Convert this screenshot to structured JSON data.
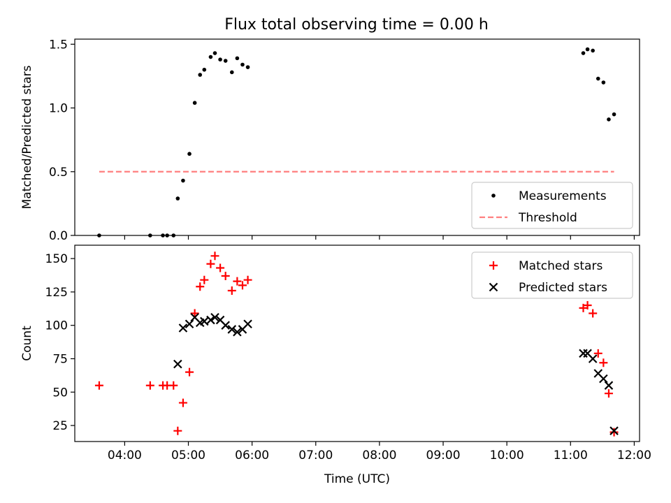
{
  "chart_data": [
    {
      "type": "scatter",
      "title": "Flux total observing time = 0.00 h",
      "xlabel": "",
      "ylabel": "Matched/Predicted stars",
      "xlim": [
        "03:13",
        "12:05"
      ],
      "ylim": [
        0,
        1.54
      ],
      "yticks": [
        0,
        0.5,
        1.0,
        1.5
      ],
      "ytick_labels": [
        "0.0",
        "0.5",
        "1.0",
        "1.5"
      ],
      "legend_position": "lower-right",
      "series": [
        {
          "name": "Measurements",
          "color": "#000000",
          "marker": "dot",
          "points": [
            [
              "03:36",
              0.0
            ],
            [
              "04:24",
              0.0
            ],
            [
              "04:36",
              0.0
            ],
            [
              "04:40",
              0.0
            ],
            [
              "04:46",
              0.0
            ],
            [
              "04:50",
              0.29
            ],
            [
              "04:55",
              0.43
            ],
            [
              "05:01",
              0.64
            ],
            [
              "05:06",
              1.04
            ],
            [
              "05:11",
              1.26
            ],
            [
              "05:15",
              1.3
            ],
            [
              "05:21",
              1.4
            ],
            [
              "05:25",
              1.43
            ],
            [
              "05:30",
              1.38
            ],
            [
              "05:35",
              1.37
            ],
            [
              "05:41",
              1.28
            ],
            [
              "05:46",
              1.39
            ],
            [
              "05:51",
              1.34
            ],
            [
              "05:56",
              1.32
            ],
            [
              "11:12",
              1.43
            ],
            [
              "11:16",
              1.46
            ],
            [
              "11:21",
              1.45
            ],
            [
              "11:26",
              1.23
            ],
            [
              "11:31",
              1.2
            ],
            [
              "11:36",
              0.91
            ],
            [
              "11:41",
              0.95
            ]
          ]
        },
        {
          "name": "Threshold",
          "color": "#ff7f7f",
          "style": "dashed",
          "points": [
            [
              "03:36",
              0.5
            ],
            [
              "11:41",
              0.5
            ]
          ]
        }
      ]
    },
    {
      "type": "scatter",
      "title": "",
      "xlabel": "Time (UTC)",
      "ylabel": "Count",
      "xlim": [
        "03:13",
        "12:05"
      ],
      "ylim": [
        13,
        160
      ],
      "yticks": [
        25,
        50,
        75,
        100,
        125,
        150
      ],
      "ytick_labels": [
        "25",
        "50",
        "75",
        "100",
        "125",
        "150"
      ],
      "xticks": [
        "04:00",
        "05:00",
        "06:00",
        "07:00",
        "08:00",
        "09:00",
        "10:00",
        "11:00",
        "12:00"
      ],
      "legend_position": "upper-right",
      "series": [
        {
          "name": "Matched stars",
          "color": "#ff0000",
          "marker": "plus",
          "points": [
            [
              "03:36",
              55
            ],
            [
              "04:24",
              55
            ],
            [
              "04:36",
              55
            ],
            [
              "04:40",
              55
            ],
            [
              "04:46",
              55
            ],
            [
              "04:50",
              21
            ],
            [
              "04:55",
              42
            ],
            [
              "05:01",
              65
            ],
            [
              "05:06",
              109
            ],
            [
              "05:11",
              129
            ],
            [
              "05:15",
              134
            ],
            [
              "05:21",
              146
            ],
            [
              "05:25",
              152
            ],
            [
              "05:30",
              143
            ],
            [
              "05:35",
              137
            ],
            [
              "05:41",
              126
            ],
            [
              "05:46",
              133
            ],
            [
              "05:51",
              130
            ],
            [
              "05:56",
              134
            ],
            [
              "11:12",
              113
            ],
            [
              "11:16",
              115
            ],
            [
              "11:21",
              109
            ],
            [
              "11:26",
              79
            ],
            [
              "11:31",
              72
            ],
            [
              "11:36",
              49
            ],
            [
              "11:41",
              20
            ]
          ]
        },
        {
          "name": "Predicted stars",
          "color": "#000000",
          "marker": "x",
          "points": [
            [
              "04:50",
              71
            ],
            [
              "04:55",
              98
            ],
            [
              "05:01",
              101
            ],
            [
              "05:06",
              106
            ],
            [
              "05:11",
              102
            ],
            [
              "05:15",
              103
            ],
            [
              "05:21",
              104
            ],
            [
              "05:25",
              106
            ],
            [
              "05:30",
              104
            ],
            [
              "05:35",
              100
            ],
            [
              "05:41",
              97
            ],
            [
              "05:46",
              95
            ],
            [
              "05:51",
              97
            ],
            [
              "05:56",
              101
            ],
            [
              "11:12",
              79
            ],
            [
              "11:16",
              79
            ],
            [
              "11:21",
              75
            ],
            [
              "11:26",
              64
            ],
            [
              "11:31",
              60
            ],
            [
              "11:36",
              55
            ],
            [
              "11:41",
              21
            ]
          ]
        }
      ]
    }
  ]
}
